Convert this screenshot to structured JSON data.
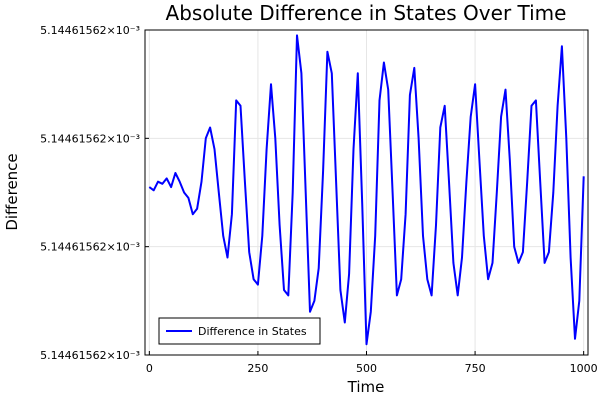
{
  "chart_data": {
    "type": "line",
    "title": "Absolute Difference in States Over Time",
    "xlabel": "Time",
    "ylabel": "Difference",
    "xlim": [
      -10,
      1010
    ],
    "ylim": [
      0,
      3
    ],
    "x_ticks": [
      0,
      250,
      500,
      750,
      1000
    ],
    "x_tick_labels": [
      "0",
      "250",
      "500",
      "750",
      "1000"
    ],
    "y_ticks": [
      0,
      1,
      2,
      3
    ],
    "y_tick_labels": [
      "5.14461562×10⁻³",
      "5.14461562×10⁻³",
      "5.14461562×10⁻³",
      "5.14461562×10⁻³"
    ],
    "grid": true,
    "legend": {
      "position": "bottom-left",
      "entries": [
        "Difference in States"
      ]
    },
    "series": [
      {
        "name": "Difference in States",
        "color": "#0000ff",
        "x": [
          0,
          10,
          20,
          30,
          40,
          50,
          60,
          70,
          80,
          90,
          100,
          110,
          120,
          130,
          140,
          150,
          160,
          170,
          180,
          190,
          200,
          210,
          220,
          230,
          240,
          250,
          260,
          270,
          280,
          290,
          300,
          310,
          320,
          330,
          340,
          350,
          360,
          370,
          380,
          390,
          400,
          410,
          420,
          430,
          440,
          450,
          460,
          470,
          480,
          490,
          500,
          510,
          520,
          530,
          540,
          550,
          560,
          570,
          580,
          590,
          600,
          610,
          620,
          630,
          640,
          650,
          660,
          670,
          680,
          690,
          700,
          710,
          720,
          730,
          740,
          750,
          760,
          770,
          780,
          790,
          800,
          810,
          820,
          830,
          840,
          850,
          860,
          870,
          880,
          890,
          900,
          910,
          920,
          930,
          940,
          950,
          960,
          970,
          980,
          990,
          1000
        ],
        "y": [
          1.55,
          1.52,
          1.6,
          1.58,
          1.63,
          1.55,
          1.68,
          1.6,
          1.5,
          1.45,
          1.3,
          1.35,
          1.6,
          2.0,
          2.1,
          1.9,
          1.5,
          1.1,
          0.9,
          1.3,
          2.35,
          2.3,
          1.6,
          0.95,
          0.7,
          0.65,
          1.1,
          1.9,
          2.5,
          2.0,
          1.2,
          0.6,
          0.55,
          1.5,
          2.95,
          2.6,
          1.5,
          0.4,
          0.5,
          0.8,
          1.7,
          2.8,
          2.6,
          1.6,
          0.6,
          0.3,
          0.75,
          1.9,
          2.6,
          1.4,
          0.1,
          0.4,
          1.1,
          2.35,
          2.7,
          2.45,
          1.5,
          0.55,
          0.7,
          1.3,
          2.4,
          2.65,
          2.0,
          1.1,
          0.7,
          0.55,
          1.2,
          2.1,
          2.3,
          1.6,
          0.85,
          0.55,
          0.9,
          1.6,
          2.2,
          2.5,
          1.8,
          1.1,
          0.7,
          0.85,
          1.5,
          2.2,
          2.45,
          1.8,
          1.0,
          0.85,
          0.95,
          1.6,
          2.3,
          2.35,
          1.6,
          0.85,
          0.95,
          1.5,
          2.3,
          2.85,
          2.0,
          0.9,
          0.15,
          0.5,
          1.65
        ]
      }
    ]
  }
}
